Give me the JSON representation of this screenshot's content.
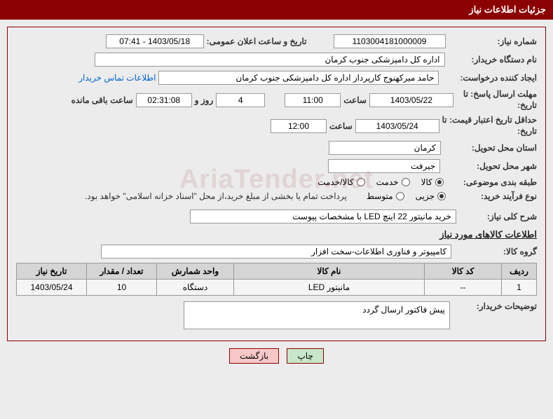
{
  "header": {
    "title": "جزئیات اطلاعات نیاز"
  },
  "fields": {
    "need_no_label": "شماره نیاز:",
    "need_no": "1103004181000009",
    "announce_label": "تاریخ و ساعت اعلان عمومی:",
    "announce_value": "1403/05/18 - 07:41",
    "org_label": "نام دستگاه خریدار:",
    "org_value": "اداره کل دامپزشکی جنوب کرمان",
    "requester_label": "ایجاد کننده درخواست:",
    "requester_value": "حامد میرکهنوج کارپرداز اداره کل دامپزشکی جنوب کرمان",
    "contact_link": "اطلاعات تماس خریدار",
    "deadline_label_l1": "مهلت ارسال پاسخ:",
    "deadline_label_l2": "تاریخ:",
    "until_word": "تا",
    "deadline_date": "1403/05/22",
    "time_word": "ساعت",
    "deadline_time": "11:00",
    "days": "4",
    "days_and": "روز و",
    "countdown": "02:31:08",
    "remain_word": "ساعت باقی مانده",
    "validity_label_l1": "حداقل تاریخ اعتبار قیمت:",
    "validity_label_l2": "تاریخ:",
    "validity_date": "1403/05/24",
    "validity_time": "12:00",
    "province_label": "استان محل تحویل:",
    "province_value": "کرمان",
    "city_label": "شهر محل تحویل:",
    "city_value": "جیرفت",
    "class_label": "طبقه بندی موضوعی:",
    "proc_label": "نوع فرآیند خرید:",
    "payment_note": "پرداخت تمام یا بخشی از مبلغ خرید،از محل \"اسناد خزانه اسلامی\" خواهد بود.",
    "desc_label": "شرح کلی نیاز:",
    "desc_value": "خرید مانیتور 22 اینچ  LED با مشخصات پیوست",
    "goods_section": "اطلاعات کالاهای مورد نیاز",
    "group_label": "گروه کالا:",
    "group_value": "کامپیوتر و فناوری اطلاعات-سخت افزار",
    "buyer_notes_label": "توضیحات خریدار:",
    "buyer_notes_value": "پیش فاکتور ارسال گردد"
  },
  "radios": {
    "class_options": [
      {
        "label": "کالا",
        "selected": true
      },
      {
        "label": "خدمت",
        "selected": false
      },
      {
        "label": "کالا/خدمت",
        "selected": false
      }
    ],
    "proc_options": [
      {
        "label": "جزیی",
        "selected": true
      },
      {
        "label": "متوسط",
        "selected": false
      }
    ]
  },
  "table": {
    "headers": {
      "row": "ردیف",
      "code": "کد کالا",
      "name": "نام کالا",
      "unit": "واحد شمارش",
      "qty": "تعداد / مقدار",
      "date": "تاریخ نیاز"
    },
    "rows": [
      {
        "row": "1",
        "code": "--",
        "name": "مانیتور LED",
        "unit": "دستگاه",
        "qty": "10",
        "date": "1403/05/24"
      }
    ]
  },
  "buttons": {
    "print": "چاپ",
    "back": "بازگشت"
  },
  "watermark": "AriaTender.net",
  "colors": {
    "header_bg": "#8b0000",
    "page_bg": "#ececec"
  }
}
